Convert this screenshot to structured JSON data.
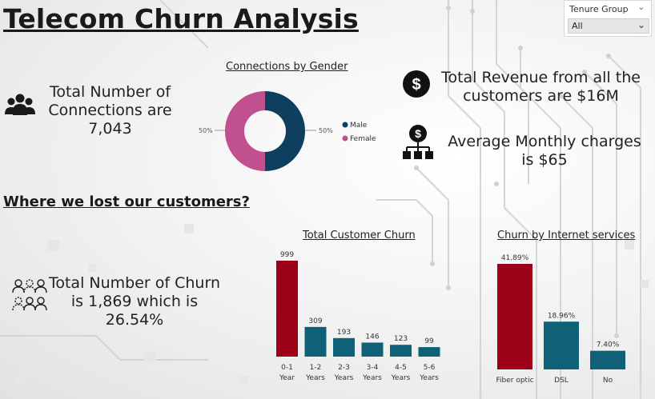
{
  "title": "Telecom Churn Analysis",
  "slicer": {
    "label": "Tenure Group",
    "value": "All",
    "icon": "chevron-down-icon"
  },
  "kpis": {
    "connections": {
      "line1": "Total Number of",
      "line2": "Connections are",
      "line3": "7,043",
      "icon": "people-group-icon"
    },
    "revenue": {
      "line1": "Total Revenue from all the",
      "line2": "customers are $16M",
      "icon": "dollar-circle-icon"
    },
    "monthly": {
      "line1": "Average Monthly charges",
      "line2": "is $65",
      "icon": "dollar-hierarchy-icon"
    },
    "churn": {
      "line1": "Total Number of Churn",
      "line2": "is 1,869 which is",
      "line3": "26.54%",
      "icon": "users-churn-icon"
    }
  },
  "section_title": "Where we lost our customers?",
  "colors": {
    "male": "#0e3e5e",
    "female": "#c0508e",
    "teal": "#0f6178",
    "red": "#9c0018"
  },
  "chart_data": [
    {
      "type": "pie",
      "title": "Connections by Gender",
      "categories": [
        "Male",
        "Female"
      ],
      "values": [
        50,
        50
      ],
      "labels": [
        "50%",
        "50%"
      ],
      "legend": "right"
    },
    {
      "type": "bar",
      "title": "Total Customer Churn",
      "categories": [
        [
          "0-1",
          "Year"
        ],
        [
          "1-2",
          "Years"
        ],
        [
          "2-3",
          "Years"
        ],
        [
          "3-4",
          "Years"
        ],
        [
          "4-5",
          "Years"
        ],
        [
          "5-6",
          "Years"
        ]
      ],
      "values": [
        999,
        309,
        193,
        146,
        123,
        99
      ],
      "labels": [
        "999",
        "309",
        "193",
        "146",
        "123",
        "99"
      ],
      "highlight_index": 0
    },
    {
      "type": "bar",
      "title": "Churn by Internet services",
      "categories": [
        "Fiber optic",
        "DSL",
        "No"
      ],
      "values": [
        41.89,
        18.96,
        7.4
      ],
      "labels": [
        "41.89%",
        "18.96%",
        "7.40%"
      ],
      "highlight_index": 0
    }
  ]
}
